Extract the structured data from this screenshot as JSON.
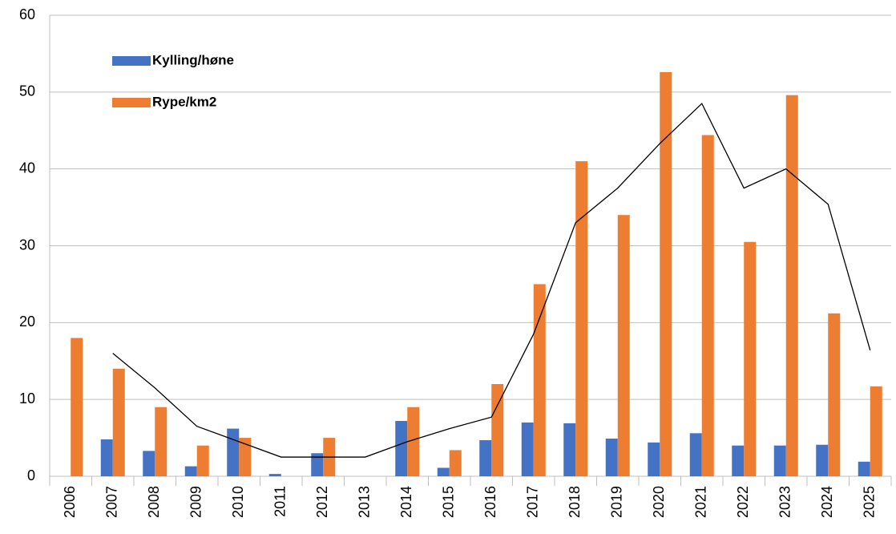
{
  "chart_data": {
    "type": "bar",
    "categories": [
      "2006",
      "2007",
      "2008",
      "2009",
      "2010",
      "2011",
      "2012",
      "2013",
      "2014",
      "2015",
      "2016",
      "2017",
      "2018",
      "2019",
      "2020",
      "2021",
      "2022",
      "2023",
      "2024",
      "2025"
    ],
    "series": [
      {
        "name": "Kylling/høne",
        "color": "#4472c4",
        "values": [
          0,
          4.8,
          3.3,
          1.3,
          6.2,
          0.3,
          3.0,
          0,
          7.2,
          1.1,
          4.7,
          7.0,
          6.9,
          4.9,
          4.4,
          5.6,
          4.0,
          4.0,
          4.1,
          1.9
        ]
      },
      {
        "name": "Rype/km2",
        "color": "#ed7d31",
        "values": [
          18,
          14,
          9,
          4,
          5,
          0,
          5,
          0,
          9,
          3.4,
          12,
          25,
          41,
          34,
          52.6,
          44.4,
          30.5,
          49.6,
          21.2,
          11.7
        ]
      },
      {
        "type": "line",
        "color": "#000000",
        "values": [
          null,
          16,
          11.5,
          6.5,
          4.5,
          2.5,
          2.5,
          2.5,
          4.5,
          6.2,
          7.7,
          18.5,
          33,
          37.5,
          43.3,
          48.5,
          37.5,
          40,
          35.4,
          16.4
        ]
      }
    ],
    "ylim": [
      0,
      60
    ],
    "yticks": [
      0,
      10,
      20,
      30,
      40,
      50,
      60
    ],
    "grid": true,
    "legend": "upper left"
  }
}
